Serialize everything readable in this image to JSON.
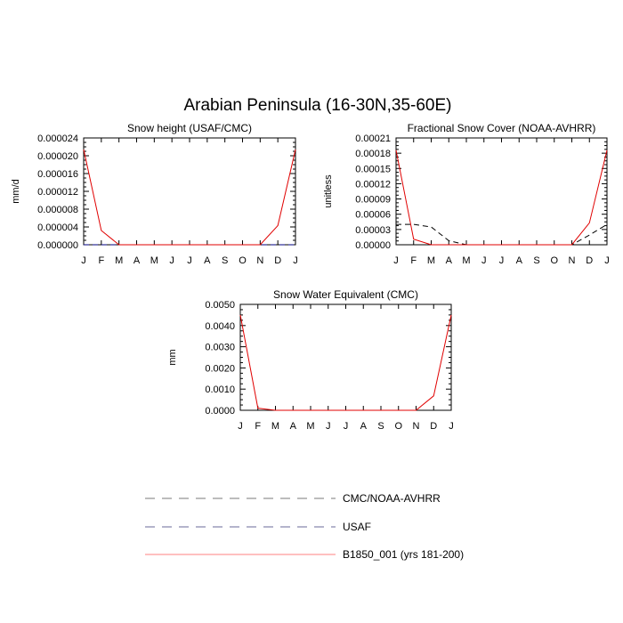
{
  "figure": {
    "title": "Arabian Peninsula (16-30N,35-60E)"
  },
  "legend": {
    "items": [
      {
        "label": "CMC/NOAA-AVHRR",
        "color": "#000000",
        "dash": "dashed"
      },
      {
        "label": "USAF",
        "color": "#000080",
        "dash": "dashed"
      },
      {
        "label": "B1850_001 (yrs 181-200)",
        "color": "#e00000",
        "dash": "solid"
      }
    ]
  },
  "chart_data": [
    {
      "type": "line",
      "title": "Snow height (USAF/CMC)",
      "xlabel": "",
      "ylabel": "mm/d",
      "x_tick_labels": [
        "J",
        "F",
        "M",
        "A",
        "M",
        "J",
        "J",
        "A",
        "S",
        "O",
        "N",
        "D",
        "J"
      ],
      "ylim": [
        0,
        2.4e-05
      ],
      "y_ticks": [
        0,
        4e-06,
        8e-06,
        1.2e-05,
        1.6e-05,
        2e-05,
        2.4e-05
      ],
      "y_tick_labels": [
        "0.000000",
        "0.000004",
        "0.000008",
        "0.000012",
        "0.000016",
        "0.000020",
        "0.000024"
      ],
      "grid": false,
      "series": [
        {
          "legend_ref": 0,
          "color": "#000000",
          "dash": "dashed",
          "values": [
            0,
            0,
            0,
            0,
            0,
            0,
            0,
            0,
            0,
            0,
            0,
            0,
            0
          ]
        },
        {
          "legend_ref": 1,
          "color": "#000080",
          "dash": "dashed",
          "values": [
            0,
            0,
            0,
            0,
            0,
            0,
            0,
            0,
            0,
            0,
            0,
            0,
            0
          ]
        },
        {
          "legend_ref": 2,
          "color": "#e00000",
          "dash": "solid",
          "values": [
            2.14e-05,
            3.2e-06,
            0,
            0,
            0,
            0,
            0,
            0,
            0,
            0,
            0,
            4.3e-06,
            2.14e-05
          ]
        }
      ]
    },
    {
      "type": "line",
      "title": "Fractional Snow Cover (NOAA-AVHRR)",
      "xlabel": "",
      "ylabel": "unitless",
      "x_tick_labels": [
        "J",
        "F",
        "M",
        "A",
        "M",
        "J",
        "J",
        "A",
        "S",
        "O",
        "N",
        "D",
        "J"
      ],
      "ylim": [
        0,
        0.00021
      ],
      "y_ticks": [
        0,
        3e-05,
        6e-05,
        9e-05,
        0.00012,
        0.00015,
        0.00018,
        0.00021
      ],
      "y_tick_labels": [
        "0.00000",
        "0.00003",
        "0.00006",
        "0.00009",
        "0.00012",
        "0.00015",
        "0.00018",
        "0.00021"
      ],
      "grid": false,
      "series": [
        {
          "legend_ref": 0,
          "color": "#000000",
          "dash": "dashed",
          "values": [
            4e-05,
            4e-05,
            3.5e-05,
            8e-06,
            0,
            0,
            0,
            0,
            0,
            0,
            0,
            1.9e-05,
            4e-05
          ]
        },
        {
          "legend_ref": 2,
          "color": "#e00000",
          "dash": "solid",
          "values": [
            0.000186,
            1.1e-05,
            0,
            0,
            0,
            0,
            0,
            0,
            0,
            0,
            0,
            4.3e-05,
            0.000186
          ]
        }
      ]
    },
    {
      "type": "line",
      "title": "Snow Water Equivalent (CMC)",
      "xlabel": "",
      "ylabel": "mm",
      "x_tick_labels": [
        "J",
        "F",
        "M",
        "A",
        "M",
        "J",
        "J",
        "A",
        "S",
        "O",
        "N",
        "D",
        "J"
      ],
      "ylim": [
        0,
        0.005
      ],
      "y_ticks": [
        0,
        0.001,
        0.002,
        0.003,
        0.004,
        0.005
      ],
      "y_tick_labels": [
        "0.0000",
        "0.0010",
        "0.0020",
        "0.0030",
        "0.0040",
        "0.0050"
      ],
      "grid": false,
      "series": [
        {
          "legend_ref": 0,
          "color": "#000000",
          "dash": "dashed",
          "values": [
            0,
            0,
            0,
            0,
            0,
            0,
            0,
            0,
            0,
            0,
            0,
            0,
            0
          ]
        },
        {
          "legend_ref": 2,
          "color": "#e00000",
          "dash": "solid",
          "values": [
            0.0045,
            0.0001,
            0,
            0,
            0,
            0,
            0,
            0,
            0,
            0,
            0,
            0.00068,
            0.0045
          ]
        }
      ]
    }
  ]
}
